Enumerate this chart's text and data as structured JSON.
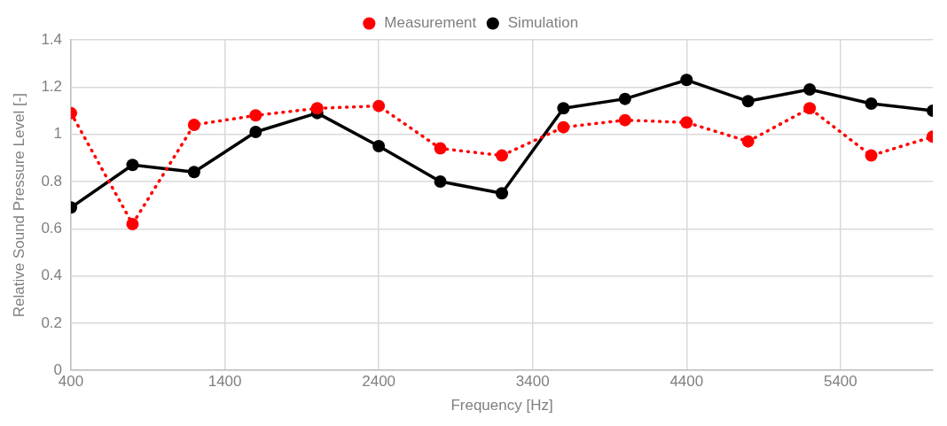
{
  "chart_data": {
    "type": "line",
    "xlabel": "Frequency [Hz]",
    "ylabel": "Relative Sound Pressure Level [-]",
    "x": [
      400,
      800,
      1200,
      1600,
      2000,
      2400,
      2800,
      3200,
      3600,
      4000,
      4400,
      4800,
      5200,
      5600,
      6000
    ],
    "series": [
      {
        "name": "Simulation",
        "color": "#000000",
        "line_style": "solid",
        "values": [
          0.69,
          0.87,
          0.84,
          1.01,
          1.09,
          0.95,
          0.8,
          0.75,
          1.11,
          1.15,
          1.23,
          1.14,
          1.19,
          1.13,
          1.1
        ]
      },
      {
        "name": "Measurement",
        "color": "#ff0000",
        "line_style": "dotted",
        "values": [
          1.09,
          0.62,
          1.04,
          1.08,
          1.11,
          1.12,
          0.94,
          0.91,
          1.03,
          1.06,
          1.05,
          0.97,
          1.11,
          0.91,
          0.99
        ]
      }
    ],
    "xlim": [
      400,
      6000
    ],
    "xticks": [
      400,
      1400,
      2400,
      3400,
      4400,
      5400
    ],
    "ylim": [
      0,
      1.4
    ],
    "yticks": [
      0,
      0.2,
      0.4,
      0.6,
      0.8,
      1,
      1.2,
      1.4
    ],
    "grid": true,
    "legend": "top",
    "marker": "circle"
  }
}
